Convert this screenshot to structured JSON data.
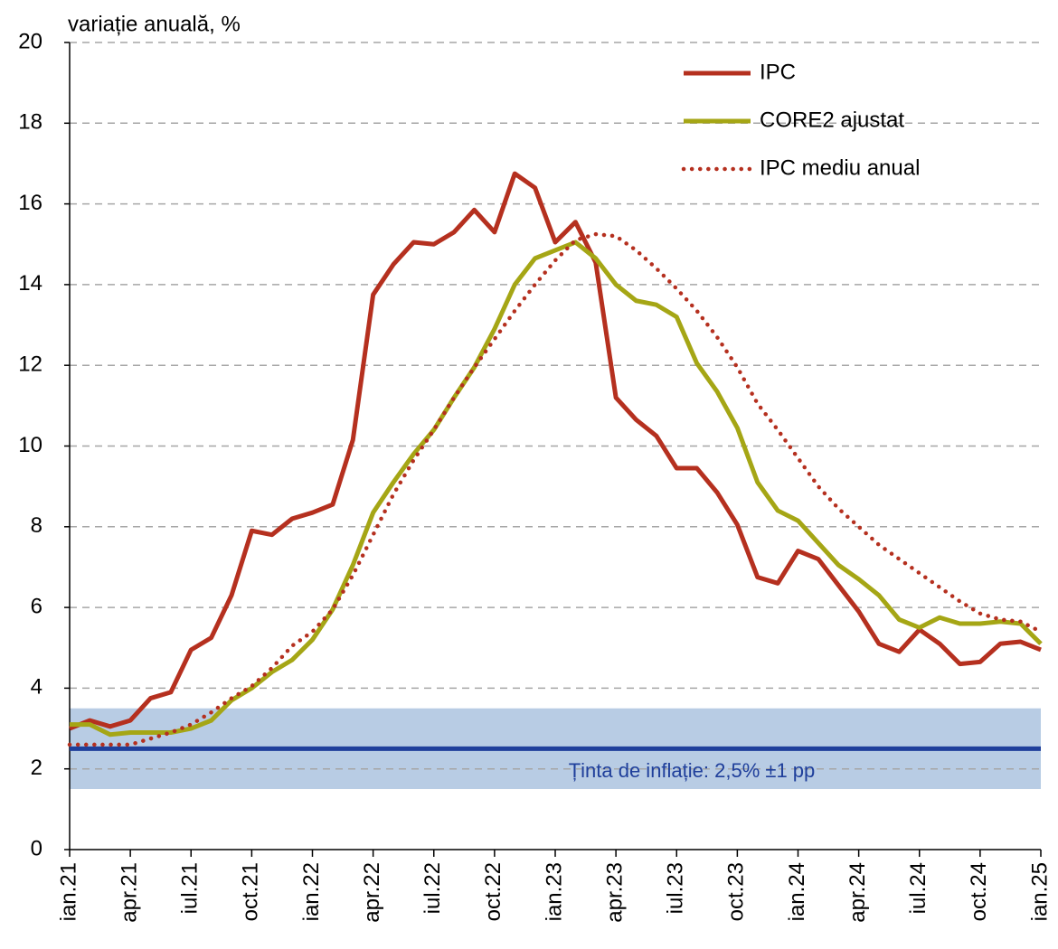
{
  "chart_data": {
    "type": "line",
    "y_label": "variație anuală, %",
    "categories": [
      "ian.21",
      null,
      null,
      "apr.21",
      null,
      null,
      "iul.21",
      null,
      null,
      "oct.21",
      null,
      null,
      "ian.22",
      null,
      null,
      "apr.22",
      null,
      null,
      "iul.22",
      null,
      null,
      "oct.22",
      null,
      null,
      "ian.23",
      null,
      null,
      "apr.23",
      null,
      null,
      "iul.23",
      null,
      null,
      "oct.23",
      null,
      null,
      "ian.24",
      null,
      null,
      "apr.24",
      null,
      null,
      "iul.24",
      null,
      null,
      "oct.24",
      null,
      null,
      "ian.25"
    ],
    "series": [
      {
        "name": "IPC",
        "color": "#b5301f",
        "style": "solid",
        "values": [
          3.0,
          3.2,
          3.05,
          3.2,
          3.75,
          3.9,
          4.95,
          5.25,
          6.3,
          7.9,
          7.8,
          8.2,
          8.35,
          8.55,
          10.15,
          13.75,
          14.5,
          15.05,
          15.0,
          15.3,
          15.85,
          15.3,
          16.75,
          16.4,
          15.05,
          15.55,
          14.55,
          11.2,
          10.65,
          10.25,
          9.45,
          9.45,
          8.85,
          8.05,
          6.75,
          6.6,
          7.4,
          7.2,
          6.55,
          5.9,
          5.1,
          4.9,
          5.45,
          5.1,
          4.6,
          4.65,
          5.1,
          5.15,
          4.95
        ]
      },
      {
        "name": "CORE2 ajustat",
        "color": "#a5a615",
        "style": "solid",
        "values": [
          3.1,
          3.1,
          2.85,
          2.9,
          2.9,
          2.9,
          3.0,
          3.2,
          3.7,
          4.0,
          4.4,
          4.7,
          5.2,
          5.95,
          7.05,
          8.35,
          9.1,
          9.8,
          10.4,
          11.2,
          11.95,
          12.9,
          14.0,
          14.65,
          14.85,
          15.05,
          14.65,
          14.0,
          13.6,
          13.5,
          13.2,
          12.05,
          11.35,
          10.45,
          9.1,
          8.4,
          8.15,
          7.6,
          7.05,
          6.7,
          6.3,
          5.7,
          5.5,
          5.75,
          5.6,
          5.6,
          5.65,
          5.6,
          5.1
        ]
      },
      {
        "name": "IPC mediu anual",
        "color": "#b5301f",
        "style": "dotted",
        "values": [
          2.6,
          2.6,
          2.6,
          2.6,
          2.75,
          2.9,
          3.1,
          3.4,
          3.75,
          4.05,
          4.5,
          5.05,
          5.4,
          5.95,
          6.8,
          7.8,
          8.8,
          9.65,
          10.4,
          11.2,
          11.95,
          12.65,
          13.35,
          14.0,
          14.6,
          15.1,
          15.25,
          15.2,
          14.85,
          14.4,
          13.9,
          13.35,
          12.7,
          11.95,
          11.05,
          10.4,
          9.7,
          9.0,
          8.45,
          8.0,
          7.55,
          7.2,
          6.85,
          6.5,
          6.15,
          5.85,
          5.7,
          5.65,
          5.4
        ]
      }
    ],
    "target": 2.5,
    "target_band": [
      1.5,
      3.5
    ],
    "target_label": "Ținta de inflație: 2,5% ±1 pp",
    "target_color": "#1f3f9b",
    "band_color": "#b8cce4",
    "ylim": [
      0,
      20
    ],
    "yticks": [
      0,
      2,
      4,
      6,
      8,
      10,
      12,
      14,
      16,
      18,
      20
    ],
    "grid": true,
    "legend": "top-right"
  }
}
